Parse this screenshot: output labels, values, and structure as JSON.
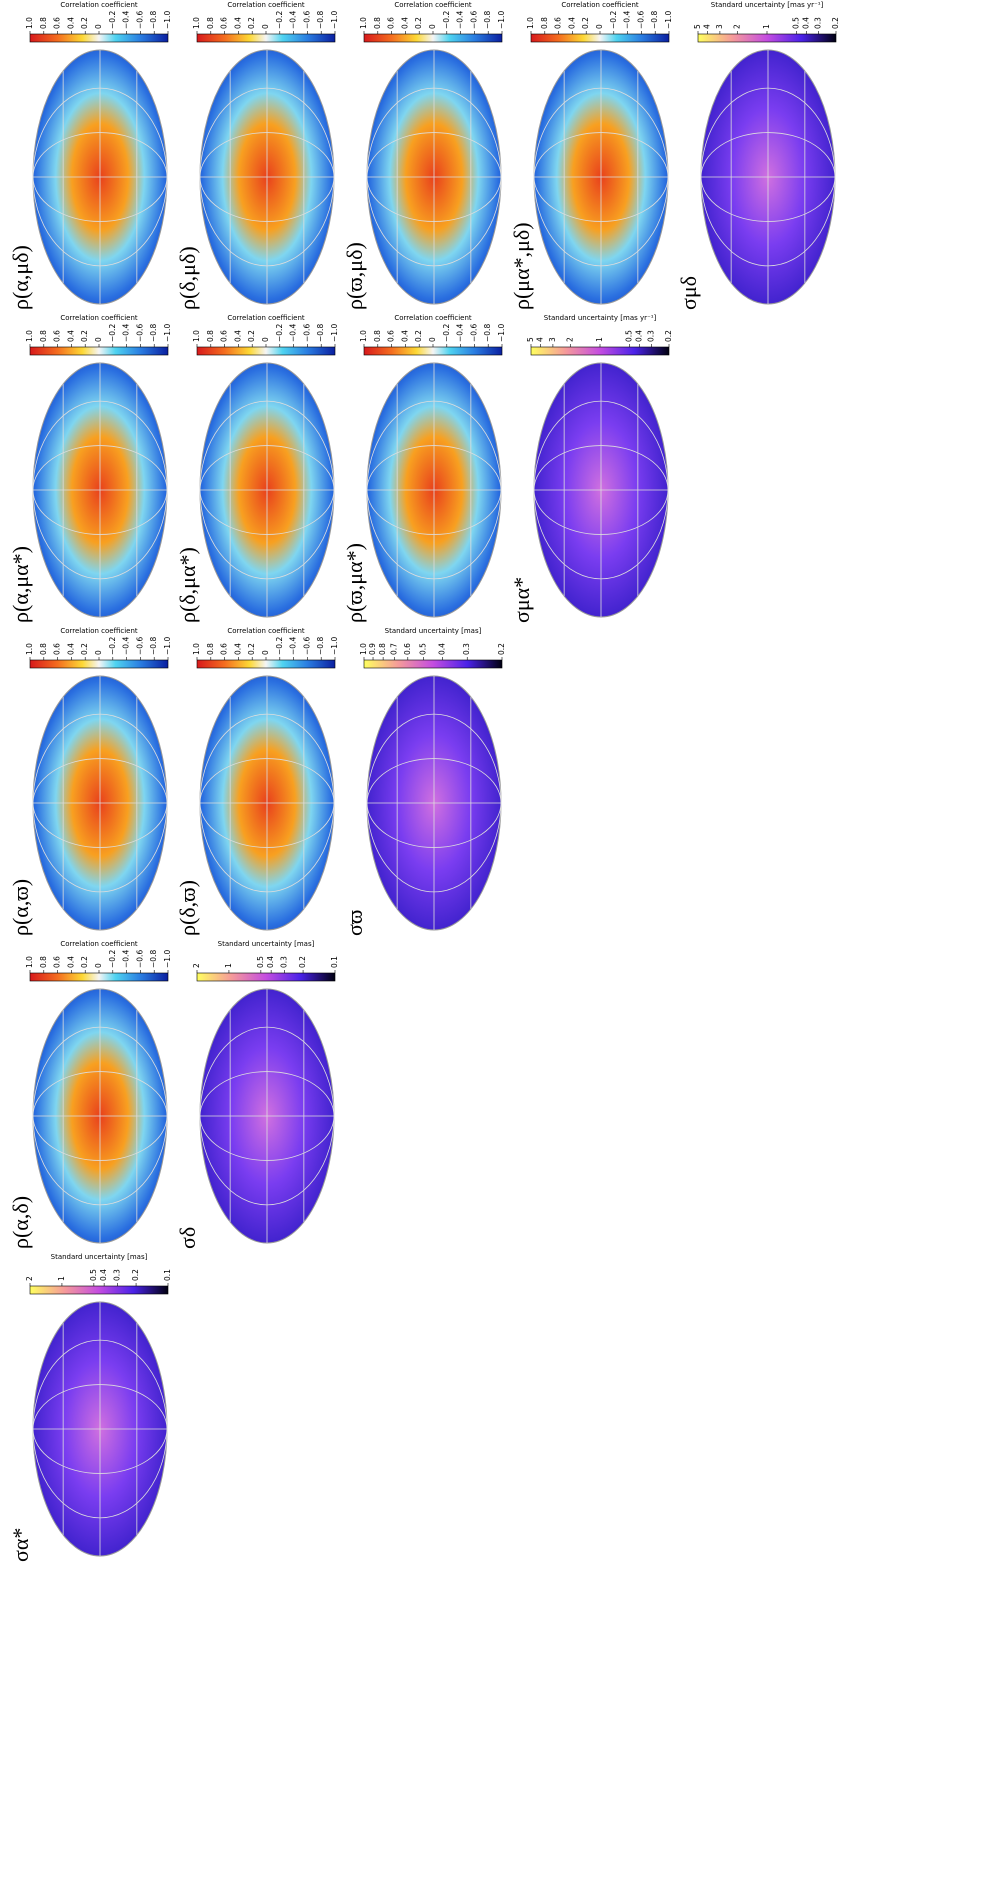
{
  "rows": [
    {
      "panels": [
        {
          "label": "σα*",
          "colorbar": {
            "title": "Standard uncertainty [mas]",
            "log": true,
            "lim": [
              0.1,
              2
            ],
            "ticks": [
              2,
              1,
              0.5,
              0.4,
              0.3,
              0.2,
              0.1
            ]
          }
        },
        {
          "label": "ρ(α,δ)",
          "colorbar": {
            "title": "Correlation coefficient",
            "log": false,
            "lim": [
              -1,
              1
            ],
            "ticks": [
              {
                "value": 1,
                "label": "1.0"
              },
              0.8,
              0.6,
              0.4,
              0.2,
              0,
              {
                "value": -0.2,
                "label": "−0.2"
              },
              {
                "value": -0.4,
                "label": "−0.4"
              },
              {
                "value": -0.6,
                "label": "−0.6"
              },
              {
                "value": -0.8,
                "label": "−0.8"
              },
              {
                "value": -1,
                "label": "−1.0"
              }
            ]
          }
        },
        {
          "label": "ρ(α,ϖ)",
          "colorbar": {
            "title": "Correlation coefficient",
            "log": false,
            "lim": [
              -1,
              1
            ],
            "ticks": [
              {
                "value": 1,
                "label": "1.0"
              },
              0.8,
              0.6,
              0.4,
              0.2,
              0,
              {
                "value": -0.2,
                "label": "−0.2"
              },
              {
                "value": -0.4,
                "label": "−0.4"
              },
              {
                "value": -0.6,
                "label": "−0.6"
              },
              {
                "value": -0.8,
                "label": "−0.8"
              },
              {
                "value": -1,
                "label": "−1.0"
              }
            ]
          }
        },
        {
          "label": "ρ(α,μα*)",
          "colorbar": {
            "title": "Correlation coefficient",
            "log": false,
            "lim": [
              -1,
              1
            ],
            "ticks": [
              {
                "value": 1,
                "label": "1.0"
              },
              0.8,
              0.6,
              0.4,
              0.2,
              0,
              {
                "value": -0.2,
                "label": "−0.2"
              },
              {
                "value": -0.4,
                "label": "−0.4"
              },
              {
                "value": -0.6,
                "label": "−0.6"
              },
              {
                "value": -0.8,
                "label": "−0.8"
              },
              {
                "value": -1,
                "label": "−1.0"
              }
            ]
          }
        },
        {
          "label": "ρ(α,μδ)",
          "colorbar": {
            "title": "Correlation coefficient",
            "log": false,
            "lim": [
              -1,
              1
            ],
            "ticks": [
              {
                "value": 1,
                "label": "1.0"
              },
              0.8,
              0.6,
              0.4,
              0.2,
              0,
              {
                "value": -0.2,
                "label": "−0.2"
              },
              {
                "value": -0.4,
                "label": "−0.4"
              },
              {
                "value": -0.6,
                "label": "−0.6"
              },
              {
                "value": -0.8,
                "label": "−0.8"
              },
              {
                "value": -1,
                "label": "−1.0"
              }
            ]
          }
        }
      ]
    },
    {
      "panels": [
        {
          "label": "σδ",
          "colorbar": {
            "title": "Standard uncertainty [mas]",
            "log": true,
            "lim": [
              0.1,
              2
            ],
            "ticks": [
              2,
              1,
              0.5,
              0.4,
              0.3,
              0.2,
              0.1
            ]
          }
        },
        {
          "label": "ρ(δ,ϖ)",
          "colorbar": {
            "title": "Correlation coefficient",
            "log": false,
            "lim": [
              -1,
              1
            ],
            "ticks": [
              {
                "value": 1,
                "label": "1.0"
              },
              0.8,
              0.6,
              0.4,
              0.2,
              0,
              {
                "value": -0.2,
                "label": "−0.2"
              },
              {
                "value": -0.4,
                "label": "−0.4"
              },
              {
                "value": -0.6,
                "label": "−0.6"
              },
              {
                "value": -0.8,
                "label": "−0.8"
              },
              {
                "value": -1,
                "label": "−1.0"
              }
            ]
          }
        },
        {
          "label": "ρ(δ,μα*)",
          "colorbar": {
            "title": "Correlation coefficient",
            "log": false,
            "lim": [
              -1,
              1
            ],
            "ticks": [
              {
                "value": 1,
                "label": "1.0"
              },
              0.8,
              0.6,
              0.4,
              0.2,
              0,
              {
                "value": -0.2,
                "label": "−0.2"
              },
              {
                "value": -0.4,
                "label": "−0.4"
              },
              {
                "value": -0.6,
                "label": "−0.6"
              },
              {
                "value": -0.8,
                "label": "−0.8"
              },
              {
                "value": -1,
                "label": "−1.0"
              }
            ]
          }
        },
        {
          "label": "ρ(δ,μδ)",
          "colorbar": {
            "title": "Correlation coefficient",
            "log": false,
            "lim": [
              -1,
              1
            ],
            "ticks": [
              {
                "value": 1,
                "label": "1.0"
              },
              0.8,
              0.6,
              0.4,
              0.2,
              0,
              {
                "value": -0.2,
                "label": "−0.2"
              },
              {
                "value": -0.4,
                "label": "−0.4"
              },
              {
                "value": -0.6,
                "label": "−0.6"
              },
              {
                "value": -0.8,
                "label": "−0.8"
              },
              {
                "value": -1,
                "label": "−1.0"
              }
            ]
          }
        }
      ]
    },
    {
      "panels": [
        {
          "label": "σϖ",
          "colorbar": {
            "title": "Standard uncertainty [mas]",
            "log": true,
            "lim": [
              0.2,
              1
            ],
            "ticks": [
              {
                "value": 1,
                "label": "1.0"
              },
              0.9,
              0.8,
              0.7,
              0.6,
              0.5,
              0.4,
              0.3,
              0.2
            ]
          }
        },
        {
          "label": "ρ(ϖ,μα*)",
          "colorbar": {
            "title": "Correlation coefficient",
            "log": false,
            "lim": [
              -1,
              1
            ],
            "ticks": [
              {
                "value": 1,
                "label": "1.0"
              },
              0.8,
              0.6,
              0.4,
              0.2,
              0,
              {
                "value": -0.2,
                "label": "−0.2"
              },
              {
                "value": -0.4,
                "label": "−0.4"
              },
              {
                "value": -0.6,
                "label": "−0.6"
              },
              {
                "value": -0.8,
                "label": "−0.8"
              },
              {
                "value": -1,
                "label": "−1.0"
              }
            ]
          }
        },
        {
          "label": "ρ(ϖ,μδ)",
          "colorbar": {
            "title": "Correlation coefficient",
            "log": false,
            "lim": [
              -1,
              1
            ],
            "ticks": [
              {
                "value": 1,
                "label": "1.0"
              },
              0.8,
              0.6,
              0.4,
              0.2,
              0,
              {
                "value": -0.2,
                "label": "−0.2"
              },
              {
                "value": -0.4,
                "label": "−0.4"
              },
              {
                "value": -0.6,
                "label": "−0.6"
              },
              {
                "value": -0.8,
                "label": "−0.8"
              },
              {
                "value": -1,
                "label": "−1.0"
              }
            ]
          }
        }
      ]
    },
    {
      "panels": [
        {
          "label": "σμα*",
          "colorbar": {
            "title": "Standard uncertainty [mas yr⁻¹]",
            "log": true,
            "lim": [
              0.2,
              5
            ],
            "ticks": [
              5,
              4,
              3,
              2,
              1,
              0.5,
              0.4,
              0.3,
              0.2
            ]
          }
        },
        {
          "label": "ρ(μα*,μδ)",
          "colorbar": {
            "title": "Correlation coefficient",
            "log": false,
            "lim": [
              -1,
              1
            ],
            "ticks": [
              {
                "value": 1,
                "label": "1.0"
              },
              0.8,
              0.6,
              0.4,
              0.2,
              0,
              {
                "value": -0.2,
                "label": "−0.2"
              },
              {
                "value": -0.4,
                "label": "−0.4"
              },
              {
                "value": -0.6,
                "label": "−0.6"
              },
              {
                "value": -0.8,
                "label": "−0.8"
              },
              {
                "value": -1,
                "label": "−1.0"
              }
            ]
          }
        }
      ]
    },
    {
      "panels": [
        {
          "label": "σμδ",
          "colorbar": {
            "title": "Standard uncertainty [mas yr⁻¹]",
            "log": true,
            "lim": [
              0.2,
              5
            ],
            "ticks": [
              5,
              4,
              3,
              2,
              1,
              0.5,
              0.4,
              0.3,
              0.2
            ]
          }
        }
      ]
    }
  ]
}
